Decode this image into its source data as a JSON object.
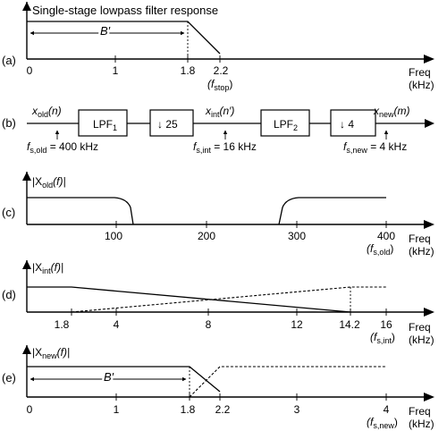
{
  "panels": {
    "a": {
      "label": "(a)",
      "title": "Single-stage lowpass filter response",
      "bandwidth": "B′",
      "ticks": [
        "0",
        "1",
        "1.8",
        "2.2"
      ],
      "fstop": "(f",
      "fstop_sub": "stop",
      "fstop_close": ")",
      "axis_label": "Freq",
      "axis_unit": "(kHz)"
    },
    "b": {
      "label": "(b)",
      "x_old": "x",
      "x_old_sub": "old",
      "x_old_arg": "(n)",
      "lpf1": "LPF",
      "lpf1_sub": "1",
      "down1": "↓ 25",
      "x_int": "x",
      "x_int_sub": "int",
      "x_int_arg": "(n′)",
      "lpf2": "LPF",
      "lpf2_sub": "2",
      "down2": "↓ 4",
      "x_new": "x",
      "x_new_sub": "new",
      "x_new_arg": "(m)",
      "fs_old": "f",
      "fs_old_sub": "s,old",
      "fs_old_val": " = 400 kHz",
      "fs_int": "f",
      "fs_int_sub": "s,int",
      "fs_int_val": " = 16 kHz",
      "fs_new": "f",
      "fs_new_sub": "s,new",
      "fs_new_val": " = 4 kHz"
    },
    "c": {
      "label": "(c)",
      "mag": "|X",
      "mag_sub": "old",
      "mag_arg": "(f)|",
      "ticks": [
        "100",
        "200",
        "300",
        "400"
      ],
      "fs": "(f",
      "fs_sub": "s,old",
      "fs_close": ")",
      "axis_label": "Freq",
      "axis_unit": "(kHz)"
    },
    "d": {
      "label": "(d)",
      "mag": "|X",
      "mag_sub": "int",
      "mag_arg": "(f)|",
      "ticks": [
        "1.8",
        "4",
        "8",
        "12",
        "14.2",
        "16"
      ],
      "fs": "(f",
      "fs_sub": "s,int",
      "fs_close": ")",
      "axis_label": "Freq",
      "axis_unit": "(kHz)"
    },
    "e": {
      "label": "(e)",
      "mag": "|X",
      "mag_sub": "new",
      "mag_arg": "(f)|",
      "bandwidth": "B′",
      "ticks": [
        "0",
        "1",
        "1.8",
        "2.2",
        "3",
        "4"
      ],
      "fs": "(f",
      "fs_sub": "s,new",
      "fs_close": ")",
      "axis_label": "Freq",
      "axis_unit": "(kHz)"
    }
  }
}
